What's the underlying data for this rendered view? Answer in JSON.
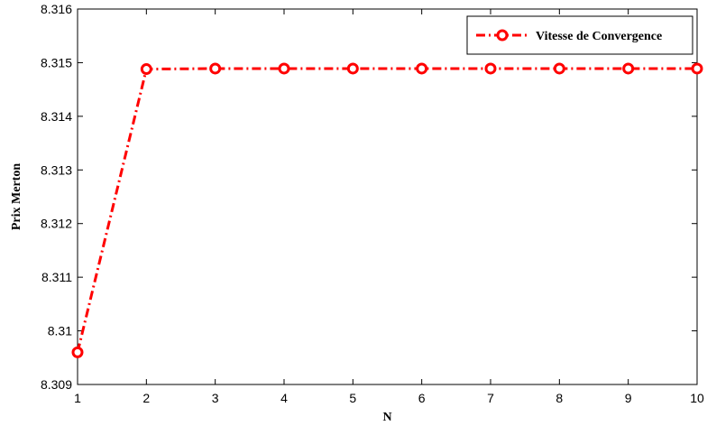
{
  "chart_data": {
    "type": "line",
    "title": "",
    "xlabel": "N",
    "ylabel": "Prix Merton",
    "xlim": [
      1,
      10
    ],
    "ylim": [
      8.309,
      8.316
    ],
    "xticks": [
      "1",
      "2",
      "3",
      "4",
      "5",
      "6",
      "7",
      "8",
      "9",
      "10"
    ],
    "yticks": [
      "8.309",
      "8.31",
      "8.311",
      "8.312",
      "8.313",
      "8.314",
      "8.315",
      "8.316"
    ],
    "grid": false,
    "legend_position": "top-right",
    "series": [
      {
        "name": "Vitesse de Convergence",
        "color": "#ff0000",
        "line_style": "dash-dot",
        "marker": "circle",
        "x": [
          1,
          2,
          3,
          4,
          5,
          6,
          7,
          8,
          9,
          10
        ],
        "y": [
          8.3096,
          8.31488,
          8.31489,
          8.31489,
          8.31489,
          8.31489,
          8.31489,
          8.31489,
          8.31489,
          8.31489
        ]
      }
    ]
  }
}
